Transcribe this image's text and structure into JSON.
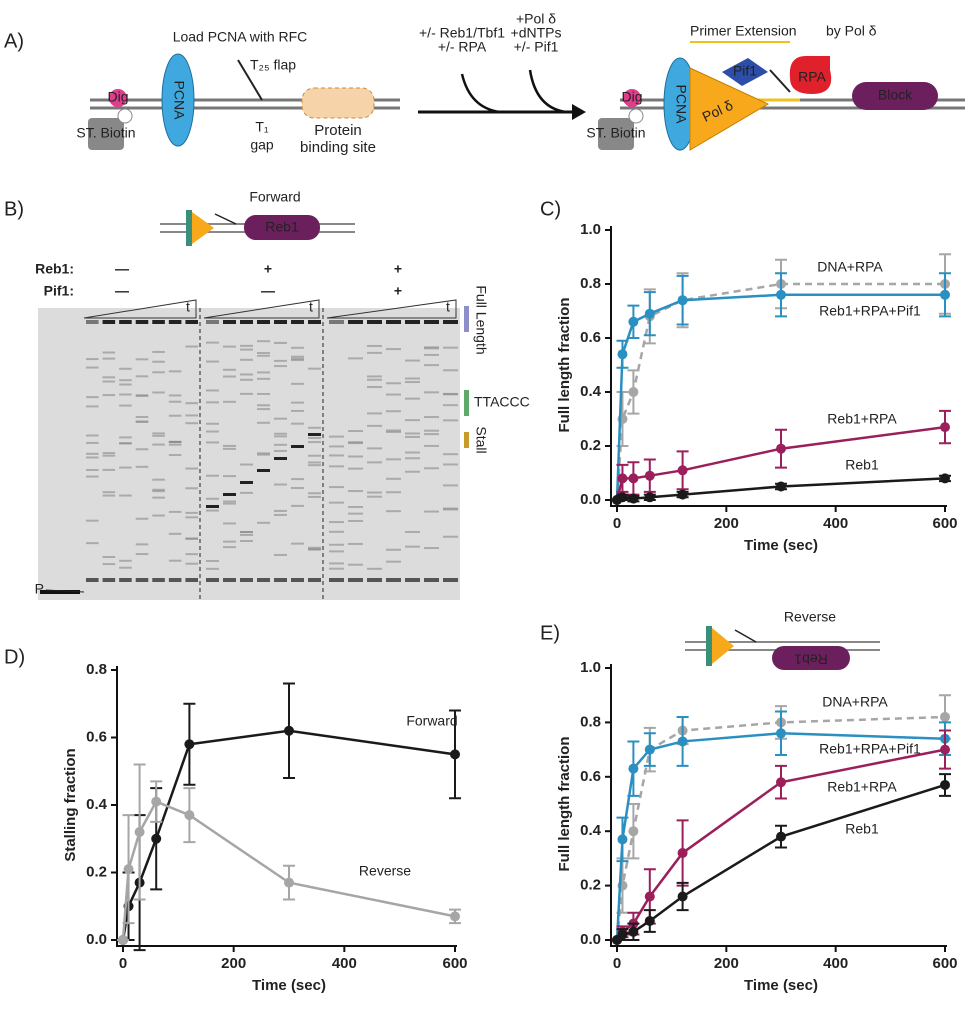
{
  "panel_labels": [
    "A)",
    "B)",
    "C)",
    "D)",
    "E)"
  ],
  "panel_a": {
    "load": "Load PCNA with RFC",
    "flap": "T₂₅ flap",
    "gap_t": "T₁",
    "gap": "gap",
    "site": "Protein binding site",
    "pcna": "PCNA",
    "biotin": "ST. Biotin",
    "dig": "Dig",
    "step1": [
      "+/- Reb1/Tbf1",
      "+/- RPA"
    ],
    "step2": [
      "+Pol δ",
      "+dNTPs",
      "+/- Pif1"
    ],
    "extension": "Primer Extension",
    "by": "by Pol δ",
    "pif1": "Pif1",
    "rpa": "RPA",
    "block": "Block",
    "pold": "Pol δ"
  },
  "panel_b": {
    "title": "Forward",
    "protein": "Reb1",
    "row_reb1": "Reb1:",
    "row_pif1": "Pif1:",
    "reb1": [
      "—",
      "+",
      "+"
    ],
    "pif1": [
      "—",
      "—",
      "+"
    ],
    "time_label": "t",
    "full": "Full Length",
    "ttaccc": "TTACCC",
    "stall": "Stall",
    "primer": "P"
  },
  "panel_e_diagram": {
    "title": "Reverse",
    "protein": "Reb1"
  },
  "chart_data": [
    {
      "type": "line",
      "ylabel": "Full length fraction",
      "xlabel": "Time (sec)",
      "x": [
        0,
        10,
        30,
        60,
        120,
        300,
        600
      ],
      "xlim": [
        0,
        600
      ],
      "xticks": [
        0,
        200,
        400,
        600
      ],
      "ylim": [
        0,
        1
      ],
      "yticks": [
        {
          "value": 0,
          "label": "0.0"
        },
        0.2,
        0.4,
        0.6,
        0.8,
        {
          "value": 1,
          "label": "1.0"
        }
      ],
      "series": [
        {
          "name": "DNA+RPA",
          "color": "#a6a6a6",
          "dashed": true,
          "values": [
            0,
            0.3,
            0.4,
            0.68,
            0.74,
            0.8,
            0.8
          ],
          "errors": [
            0,
            0.1,
            0.08,
            0.1,
            0.1,
            0.09,
            0.11
          ]
        },
        {
          "name": "Reb1+RPA+Pif1",
          "color": "#2a8fc1",
          "values": [
            0,
            0.54,
            0.66,
            0.69,
            0.74,
            0.76,
            0.76
          ],
          "errors": [
            0,
            0.05,
            0.06,
            0.08,
            0.09,
            0.08,
            0.08
          ]
        },
        {
          "name": "Reb1+RPA",
          "color": "#9a1f5b",
          "values": [
            0,
            0.08,
            0.08,
            0.09,
            0.11,
            0.19,
            0.27
          ],
          "errors": [
            0,
            0.05,
            0.06,
            0.06,
            0.07,
            0.07,
            0.06
          ]
        },
        {
          "name": "Reb1",
          "color": "#1a1a1a",
          "values": [
            0,
            0.01,
            0.005,
            0.01,
            0.02,
            0.05,
            0.08
          ],
          "errors": [
            0,
            0.01,
            0.01,
            0.01,
            0.01,
            0.01,
            0.01
          ]
        }
      ]
    },
    {
      "type": "line",
      "ylabel": "Stalling fraction",
      "xlabel": "Time (sec)",
      "x": [
        0,
        10,
        30,
        60,
        120,
        300,
        600
      ],
      "xlim": [
        0,
        600
      ],
      "xticks": [
        0,
        200,
        400,
        600
      ],
      "ylim": [
        0,
        0.8
      ],
      "yticks": [
        {
          "value": 0,
          "label": "0.0"
        },
        0.2,
        0.4,
        0.6,
        0.8
      ],
      "series": [
        {
          "name": "Forward",
          "color": "#1a1a1a",
          "values": [
            0,
            0.1,
            0.17,
            0.3,
            0.58,
            0.62,
            0.55
          ],
          "errors": [
            0,
            0.1,
            0.2,
            0.15,
            0.12,
            0.14,
            0.13
          ]
        },
        {
          "name": "Reverse",
          "color": "#a6a6a6",
          "values": [
            0,
            0.21,
            0.32,
            0.41,
            0.37,
            0.17,
            0.07
          ],
          "errors": [
            0,
            0.16,
            0.2,
            0.06,
            0.08,
            0.05,
            0.02
          ]
        }
      ]
    },
    {
      "type": "line",
      "ylabel": "Full length fraction",
      "xlabel": "Time (sec)",
      "x": [
        0,
        10,
        30,
        60,
        120,
        300,
        600
      ],
      "xlim": [
        0,
        600
      ],
      "xticks": [
        0,
        200,
        400,
        600
      ],
      "ylim": [
        0,
        1
      ],
      "yticks": [
        {
          "value": 0,
          "label": "0.0"
        },
        0.2,
        0.4,
        0.6,
        0.8,
        {
          "value": 1,
          "label": "1.0"
        }
      ],
      "series": [
        {
          "name": "DNA+RPA",
          "color": "#a6a6a6",
          "dashed": true,
          "values": [
            0,
            0.2,
            0.4,
            0.7,
            0.77,
            0.8,
            0.82
          ],
          "errors": [
            0,
            0.1,
            0.1,
            0.08,
            0.05,
            0.06,
            0.08
          ]
        },
        {
          "name": "Reb1+RPA+Pif1",
          "color": "#2a8fc1",
          "values": [
            0,
            0.37,
            0.63,
            0.7,
            0.73,
            0.76,
            0.74
          ],
          "errors": [
            0,
            0.08,
            0.1,
            0.06,
            0.09,
            0.08,
            0.06
          ]
        },
        {
          "name": "Reb1+RPA",
          "color": "#9a1f5b",
          "values": [
            0,
            0.03,
            0.06,
            0.16,
            0.32,
            0.58,
            0.7
          ],
          "errors": [
            0,
            0.02,
            0.04,
            0.1,
            0.12,
            0.06,
            0.07
          ]
        },
        {
          "name": "Reb1",
          "color": "#1a1a1a",
          "values": [
            0,
            0.02,
            0.03,
            0.07,
            0.16,
            0.38,
            0.57
          ],
          "errors": [
            0,
            0.02,
            0.03,
            0.04,
            0.05,
            0.04,
            0.04
          ]
        }
      ]
    }
  ]
}
